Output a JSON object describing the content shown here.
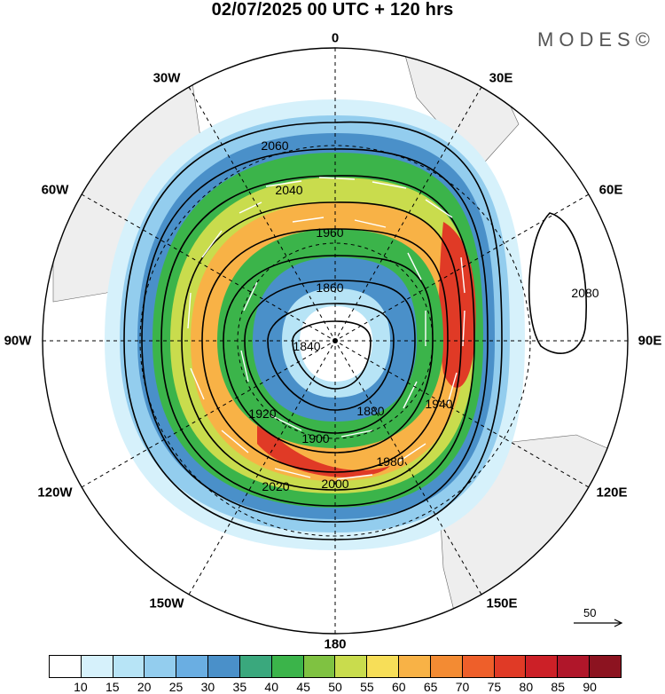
{
  "title": "02/07/2025  00 UTC  + 120 hrs",
  "brand": "MODES©",
  "longitude_labels": {
    "lon_0": "0",
    "lon_30E": "30E",
    "lon_60E": "60E",
    "lon_90E": "90E",
    "lon_120E": "120E",
    "lon_150E": "150E",
    "lon_180": "180",
    "lon_150W": "150W",
    "lon_120W": "120W",
    "lon_90W": "90W",
    "lon_60W": "60W",
    "lon_30W": "30W"
  },
  "map": {
    "projection": "south-polar-stereographic",
    "field": "wind speed (shaded) with geopotential height contours and wind vectors",
    "contour_labels": [
      "1840",
      "1860",
      "1880",
      "1900",
      "1920",
      "1940",
      "1960",
      "1980",
      "2000",
      "2020",
      "2040",
      "2060",
      "2080"
    ],
    "colors": {
      "contour": "#000000",
      "land": "#eeeeee",
      "vector": "#ffffff"
    }
  },
  "vector_reference": {
    "label": "50"
  },
  "colorbar": {
    "colors": [
      "#ffffff",
      "#d6f1fb",
      "#b7e4f6",
      "#93cdee",
      "#6aaee2",
      "#4a90c9",
      "#3aa87d",
      "#3bb44a",
      "#7fc241",
      "#c9dc4d",
      "#f7de58",
      "#f8b246",
      "#f38b33",
      "#ee5f2a",
      "#e03a26",
      "#cc2027",
      "#b0162a",
      "#8c1320"
    ],
    "tick_labels": [
      "10",
      "15",
      "20",
      "25",
      "30",
      "35",
      "40",
      "45",
      "50",
      "55",
      "60",
      "65",
      "70",
      "75",
      "80",
      "85",
      "90"
    ]
  }
}
